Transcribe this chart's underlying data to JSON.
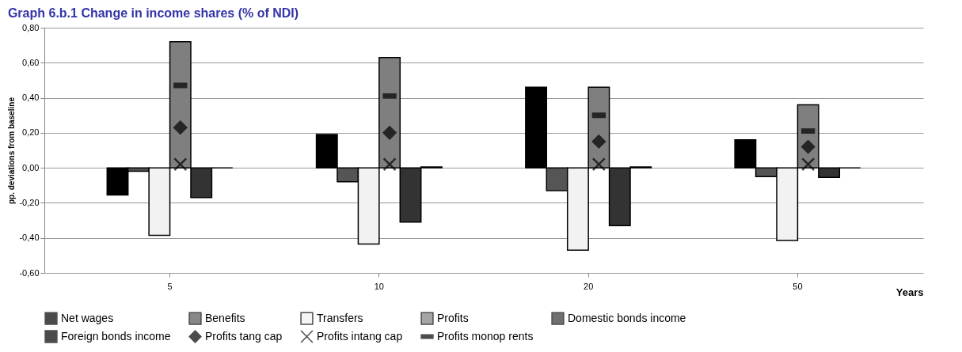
{
  "chart_data": {
    "type": "bar",
    "title": "Graph 6.b.1    Change in income shares (% of NDI)",
    "xlabel": "Years",
    "ylabel": "pp.  deviations from baseline",
    "categories": [
      "5",
      "10",
      "20",
      "50"
    ],
    "series": [
      {
        "name": "Net wages",
        "color": "#000000",
        "values": [
          -0.155,
          0.19,
          0.46,
          0.16
        ]
      },
      {
        "name": "Benefits",
        "color": "#555555",
        "values": [
          -0.02,
          -0.08,
          -0.13,
          -0.05
        ]
      },
      {
        "name": "Transfers",
        "color": "#f2f2f2",
        "values": [
          -0.385,
          -0.435,
          -0.47,
          -0.415
        ]
      },
      {
        "name": "Profits",
        "color": "#7f7f7f",
        "values": [
          0.72,
          0.63,
          0.46,
          0.36
        ]
      },
      {
        "name": "Domestic bonds income",
        "color": "#333333",
        "values": [
          -0.17,
          -0.31,
          -0.33,
          -0.055
        ]
      },
      {
        "name": "Foreign bonds income",
        "color": "#000000",
        "values": [
          0,
          0.005,
          0.005,
          0
        ]
      },
      {
        "name": "Profits tang cap",
        "type": "scatter",
        "marker": "diamond",
        "color": "#000000",
        "values": [
          0.23,
          0.2,
          0.15,
          0.12
        ]
      },
      {
        "name": "Profits intang cap",
        "type": "scatter",
        "marker": "cross",
        "color": "#000000",
        "values": [
          0.02,
          0.02,
          0.02,
          0.02
        ]
      },
      {
        "name": "Profits monop rents",
        "type": "scatter",
        "color": "#000000",
        "values": [
          0.47,
          0.41,
          0.3,
          0.21
        ]
      }
    ],
    "ylim": [
      -0.6,
      0.8
    ],
    "yticks": [
      {
        "value": -0.6,
        "label": "-0,60"
      },
      {
        "value": -0.4,
        "label": "-0,40"
      },
      {
        "value": -0.2,
        "label": "-0,20"
      },
      {
        "value": 0,
        "label": "0,00"
      },
      {
        "value": 0.2,
        "label": "0,20"
      },
      {
        "value": 0.4,
        "label": "0,40"
      },
      {
        "value": 0.6,
        "label": "0,60"
      },
      {
        "value": 0.8,
        "label": "0,80"
      }
    ],
    "grid": "y",
    "legend": "bottom"
  }
}
